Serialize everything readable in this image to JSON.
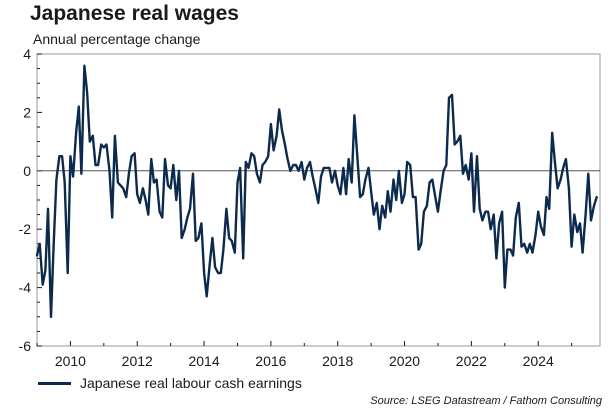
{
  "title": "Japanese real wages",
  "subtitle": "Annual percentage change",
  "source": "Source: LSEG Datastream / Fathom Consulting",
  "colors": {
    "series": "#0c2a4d",
    "zero_line": "#555555",
    "frame": "#999999",
    "text": "#1a1a1a"
  },
  "chart_data": {
    "type": "line",
    "xlabel": "",
    "ylabel": "",
    "xlim": [
      2009.0,
      2025.85
    ],
    "ylim": [
      -6,
      4
    ],
    "x_ticks": [
      2010,
      2012,
      2014,
      2016,
      2018,
      2020,
      2022,
      2024
    ],
    "x_tick_labels": [
      "2010",
      "2012",
      "2014",
      "2016",
      "2018",
      "2020",
      "2022",
      "2024"
    ],
    "y_ticks": [
      4,
      2,
      0,
      -2,
      -4,
      -6
    ],
    "y_tick_labels": [
      "4",
      "2",
      "0",
      "-2",
      "-4",
      "-6"
    ],
    "grid": false,
    "zero_line": true,
    "legend": "bottom-left",
    "series": [
      {
        "name": "Japanese real labour cash earnings",
        "points": [
          [
            2009.0,
            -2.9
          ],
          [
            2009.08,
            -2.5
          ],
          [
            2009.17,
            -3.9
          ],
          [
            2009.25,
            -3.4
          ],
          [
            2009.33,
            -1.3
          ],
          [
            2009.42,
            -5.0
          ],
          [
            2009.5,
            -2.5
          ],
          [
            2009.58,
            -0.3
          ],
          [
            2009.67,
            0.5
          ],
          [
            2009.75,
            0.5
          ],
          [
            2009.83,
            -0.4
          ],
          [
            2009.92,
            -3.5
          ],
          [
            2010.0,
            0.5
          ],
          [
            2010.08,
            -0.2
          ],
          [
            2010.17,
            1.3
          ],
          [
            2010.25,
            2.2
          ],
          [
            2010.33,
            -0.1
          ],
          [
            2010.42,
            3.6
          ],
          [
            2010.5,
            2.7
          ],
          [
            2010.58,
            1.0
          ],
          [
            2010.67,
            1.2
          ],
          [
            2010.75,
            0.2
          ],
          [
            2010.83,
            0.2
          ],
          [
            2010.92,
            0.9
          ],
          [
            2011.0,
            0.8
          ],
          [
            2011.08,
            0.9
          ],
          [
            2011.17,
            0.0
          ],
          [
            2011.25,
            -1.6
          ],
          [
            2011.33,
            1.2
          ],
          [
            2011.42,
            -0.4
          ],
          [
            2011.5,
            -0.5
          ],
          [
            2011.58,
            -0.6
          ],
          [
            2011.67,
            -0.9
          ],
          [
            2011.75,
            -0.1
          ],
          [
            2011.83,
            0.5
          ],
          [
            2011.92,
            0.6
          ],
          [
            2012.0,
            -0.8
          ],
          [
            2012.08,
            -1.1
          ],
          [
            2012.17,
            -0.6
          ],
          [
            2012.25,
            -1.0
          ],
          [
            2012.33,
            -1.5
          ],
          [
            2012.42,
            0.4
          ],
          [
            2012.5,
            -0.4
          ],
          [
            2012.58,
            -0.3
          ],
          [
            2012.67,
            -1.4
          ],
          [
            2012.75,
            -1.6
          ],
          [
            2012.83,
            0.4
          ],
          [
            2012.92,
            -0.5
          ],
          [
            2013.0,
            -0.6
          ],
          [
            2013.08,
            0.2
          ],
          [
            2013.17,
            -1.0
          ],
          [
            2013.25,
            0.0
          ],
          [
            2013.33,
            -2.3
          ],
          [
            2013.42,
            -2.0
          ],
          [
            2013.5,
            -1.6
          ],
          [
            2013.58,
            -1.3
          ],
          [
            2013.67,
            -0.1
          ],
          [
            2013.75,
            -2.4
          ],
          [
            2013.83,
            -2.3
          ],
          [
            2013.92,
            -1.8
          ],
          [
            2014.0,
            -3.5
          ],
          [
            2014.08,
            -4.3
          ],
          [
            2014.17,
            -3.2
          ],
          [
            2014.25,
            -2.3
          ],
          [
            2014.33,
            -3.3
          ],
          [
            2014.42,
            -3.5
          ],
          [
            2014.5,
            -3.5
          ],
          [
            2014.58,
            -2.7
          ],
          [
            2014.67,
            -1.3
          ],
          [
            2014.75,
            -2.3
          ],
          [
            2014.83,
            -2.4
          ],
          [
            2014.92,
            -2.8
          ],
          [
            2015.0,
            -0.4
          ],
          [
            2015.08,
            0.1
          ],
          [
            2015.17,
            -3.0
          ],
          [
            2015.25,
            0.3
          ],
          [
            2015.33,
            0.1
          ],
          [
            2015.42,
            0.6
          ],
          [
            2015.5,
            0.5
          ],
          [
            2015.58,
            -0.1
          ],
          [
            2015.67,
            -0.4
          ],
          [
            2015.75,
            0.2
          ],
          [
            2015.83,
            0.3
          ],
          [
            2015.92,
            0.5
          ],
          [
            2016.0,
            1.6
          ],
          [
            2016.08,
            0.7
          ],
          [
            2016.17,
            1.2
          ],
          [
            2016.25,
            2.1
          ],
          [
            2016.33,
            1.4
          ],
          [
            2016.42,
            0.9
          ],
          [
            2016.5,
            0.4
          ],
          [
            2016.58,
            0.0
          ],
          [
            2016.67,
            0.2
          ],
          [
            2016.75,
            0.2
          ],
          [
            2016.83,
            0.0
          ],
          [
            2016.92,
            0.3
          ],
          [
            2017.0,
            -0.3
          ],
          [
            2017.08,
            0.1
          ],
          [
            2017.17,
            0.3
          ],
          [
            2017.25,
            -0.2
          ],
          [
            2017.33,
            -0.6
          ],
          [
            2017.42,
            -1.1
          ],
          [
            2017.5,
            -0.2
          ],
          [
            2017.58,
            0.1
          ],
          [
            2017.67,
            0.1
          ],
          [
            2017.75,
            0.1
          ],
          [
            2017.83,
            -0.4
          ],
          [
            2017.92,
            0.0
          ],
          [
            2018.0,
            -0.5
          ],
          [
            2018.08,
            -0.8
          ],
          [
            2018.17,
            0.1
          ],
          [
            2018.25,
            -0.8
          ],
          [
            2018.33,
            0.4
          ],
          [
            2018.42,
            -0.4
          ],
          [
            2018.5,
            1.9
          ],
          [
            2018.58,
            0.6
          ],
          [
            2018.67,
            -0.9
          ],
          [
            2018.75,
            -0.8
          ],
          [
            2018.83,
            -0.3
          ],
          [
            2018.92,
            0.1
          ],
          [
            2019.0,
            -0.7
          ],
          [
            2019.08,
            -1.5
          ],
          [
            2019.17,
            -1.1
          ],
          [
            2019.25,
            -2.0
          ],
          [
            2019.33,
            -1.2
          ],
          [
            2019.42,
            -1.6
          ],
          [
            2019.5,
            -0.7
          ],
          [
            2019.58,
            -1.4
          ],
          [
            2019.67,
            -0.3
          ],
          [
            2019.75,
            -1.0
          ],
          [
            2019.83,
            0.0
          ],
          [
            2019.92,
            -1.1
          ],
          [
            2020.0,
            -0.8
          ],
          [
            2020.08,
            0.3
          ],
          [
            2020.17,
            0.2
          ],
          [
            2020.25,
            -0.9
          ],
          [
            2020.33,
            -0.9
          ],
          [
            2020.42,
            -2.7
          ],
          [
            2020.5,
            -2.5
          ],
          [
            2020.58,
            -1.4
          ],
          [
            2020.67,
            -1.2
          ],
          [
            2020.75,
            -0.4
          ],
          [
            2020.83,
            -0.3
          ],
          [
            2020.92,
            -0.9
          ],
          [
            2021.0,
            -1.4
          ],
          [
            2021.08,
            -0.7
          ],
          [
            2021.17,
            0.0
          ],
          [
            2021.25,
            0.2
          ],
          [
            2021.33,
            2.5
          ],
          [
            2021.42,
            2.6
          ],
          [
            2021.5,
            0.9
          ],
          [
            2021.58,
            1.0
          ],
          [
            2021.67,
            1.2
          ],
          [
            2021.75,
            -0.1
          ],
          [
            2021.83,
            0.2
          ],
          [
            2021.92,
            -0.3
          ],
          [
            2022.0,
            0.6
          ],
          [
            2022.08,
            -1.4
          ],
          [
            2022.17,
            0.5
          ],
          [
            2022.25,
            -1.3
          ],
          [
            2022.33,
            -1.7
          ],
          [
            2022.42,
            -1.4
          ],
          [
            2022.5,
            -1.4
          ],
          [
            2022.58,
            -2.0
          ],
          [
            2022.67,
            -1.5
          ],
          [
            2022.75,
            -3.0
          ],
          [
            2022.83,
            -1.8
          ],
          [
            2022.92,
            -1.4
          ],
          [
            2023.0,
            -4.0
          ],
          [
            2023.08,
            -2.7
          ],
          [
            2023.17,
            -2.7
          ],
          [
            2023.25,
            -2.9
          ],
          [
            2023.33,
            -1.6
          ],
          [
            2023.42,
            -1.1
          ],
          [
            2023.5,
            -2.6
          ],
          [
            2023.58,
            -2.5
          ],
          [
            2023.67,
            -2.8
          ],
          [
            2023.75,
            -2.5
          ],
          [
            2023.83,
            -2.8
          ],
          [
            2023.92,
            -2.2
          ],
          [
            2024.0,
            -1.4
          ],
          [
            2024.08,
            -1.9
          ],
          [
            2024.17,
            -2.2
          ],
          [
            2024.25,
            -0.9
          ],
          [
            2024.33,
            -1.3
          ],
          [
            2024.42,
            1.3
          ],
          [
            2024.5,
            0.3
          ],
          [
            2024.58,
            -0.6
          ],
          [
            2024.67,
            -0.3
          ],
          [
            2024.75,
            0.1
          ],
          [
            2024.83,
            0.4
          ],
          [
            2024.92,
            -0.6
          ],
          [
            2025.0,
            -2.6
          ],
          [
            2025.08,
            -1.5
          ],
          [
            2025.17,
            -2.1
          ],
          [
            2025.25,
            -1.8
          ],
          [
            2025.33,
            -2.8
          ],
          [
            2025.42,
            -1.5
          ],
          [
            2025.5,
            -0.1
          ],
          [
            2025.58,
            -1.7
          ],
          [
            2025.67,
            -1.2
          ],
          [
            2025.75,
            -0.9
          ]
        ]
      }
    ]
  }
}
